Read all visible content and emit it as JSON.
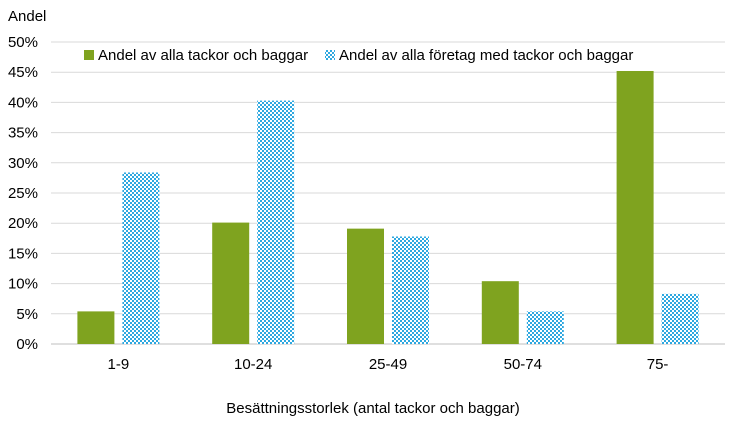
{
  "chart_data": {
    "type": "bar",
    "ylabel": "Andel",
    "xlabel": "Besättningsstorlek (antal tackor och baggar)",
    "categories": [
      "1-9",
      "10-24",
      "25-49",
      "50-74",
      "75-"
    ],
    "series": [
      {
        "name": "Andel av alla tackor och baggar",
        "values": [
          5.4,
          20.1,
          19.1,
          10.4,
          45.2
        ],
        "color": "#7fa31f",
        "pattern": "solid"
      },
      {
        "name": "Andel av alla företag med tackor och baggar",
        "values": [
          28.4,
          40.3,
          17.8,
          5.4,
          8.3
        ],
        "color": "#2ea8e0",
        "pattern": "dotted"
      }
    ],
    "ylim": [
      0,
      50
    ],
    "yticks": [
      "0%",
      "5%",
      "10%",
      "15%",
      "20%",
      "25%",
      "30%",
      "35%",
      "40%",
      "45%",
      "50%"
    ],
    "grid": true,
    "legend_position": "top"
  }
}
